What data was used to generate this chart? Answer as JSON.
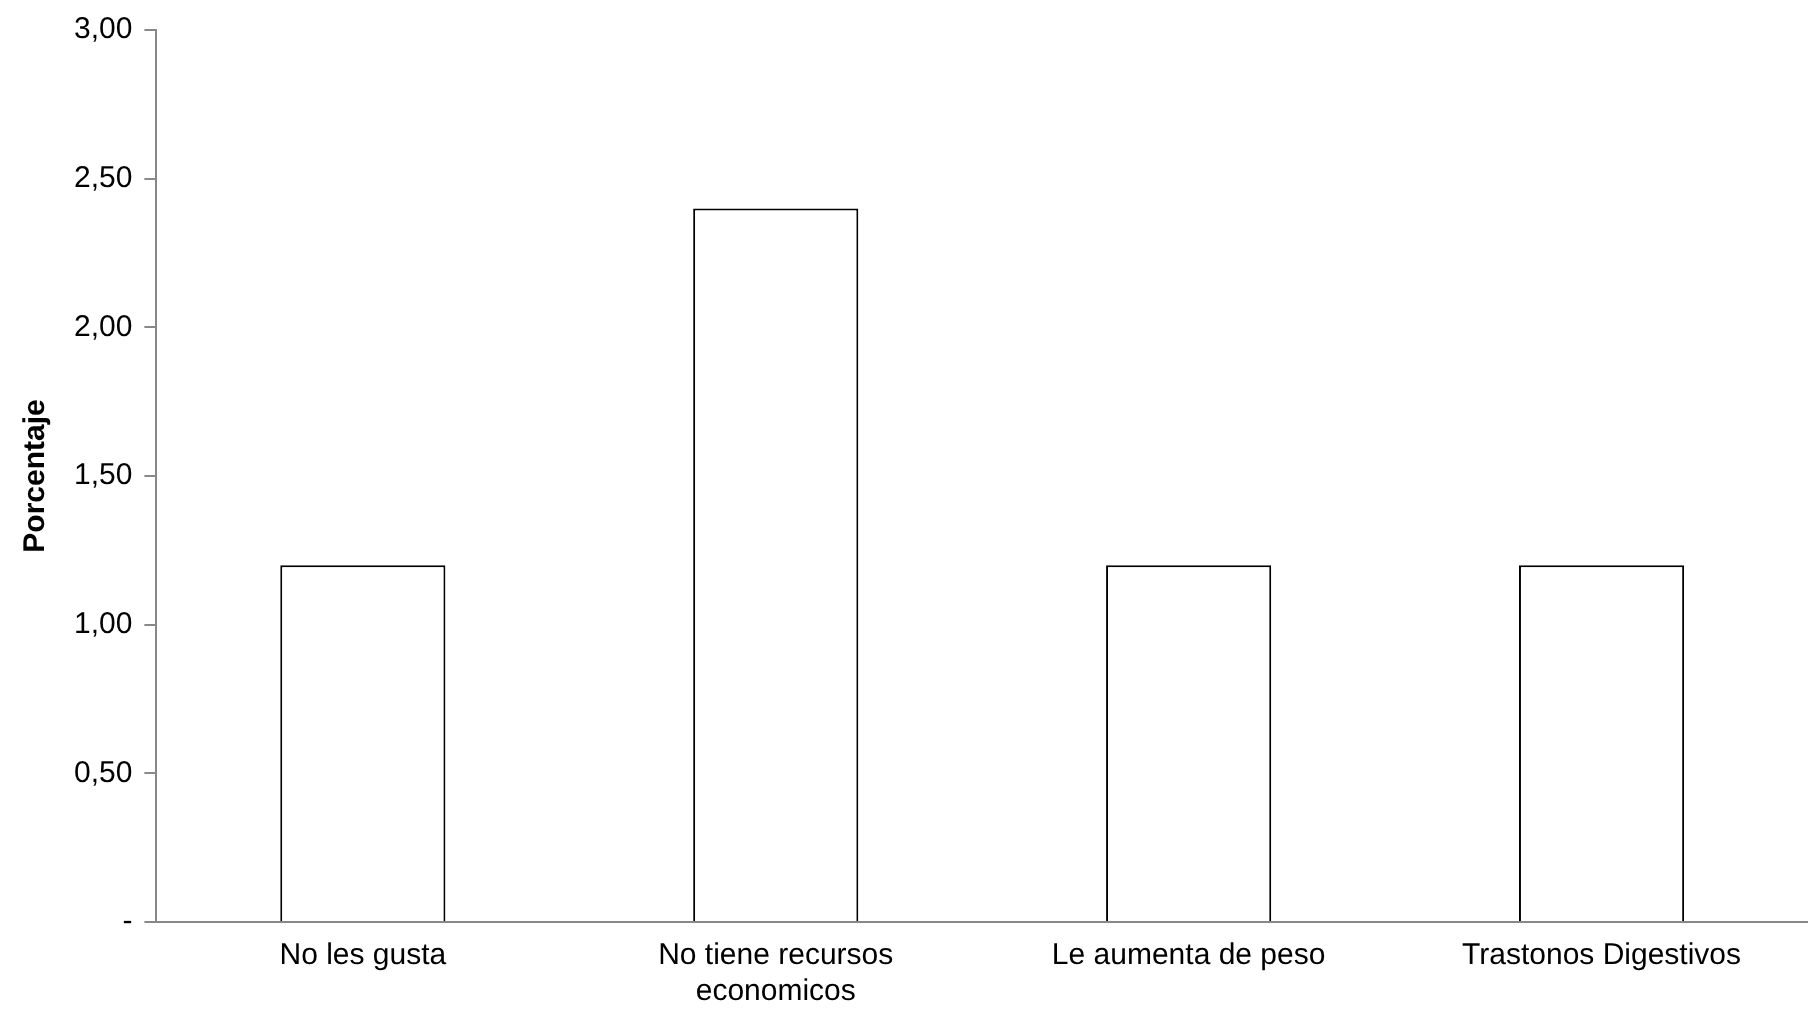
{
  "chart_data": {
    "type": "bar",
    "ylabel": "Porcentaje",
    "categories": [
      "No les gusta",
      "No tiene recursos economicos",
      "Le aumenta de peso",
      "Trastonos Digestivos"
    ],
    "values": [
      1.2,
      2.4,
      1.2,
      1.2
    ],
    "color": "#ffffff",
    "ylim": [
      0,
      3
    ],
    "yticks": [
      {
        "value": 0,
        "label": "-"
      },
      {
        "value": 0.5,
        "label": "0,50"
      },
      {
        "value": 1,
        "label": "1,00"
      },
      {
        "value": 1.5,
        "label": "1,50"
      },
      {
        "value": 2,
        "label": "2,00"
      },
      {
        "value": 2.5,
        "label": "2,50"
      },
      {
        "value": 3,
        "label": "3,00"
      }
    ],
    "grid": false,
    "legend": false
  }
}
